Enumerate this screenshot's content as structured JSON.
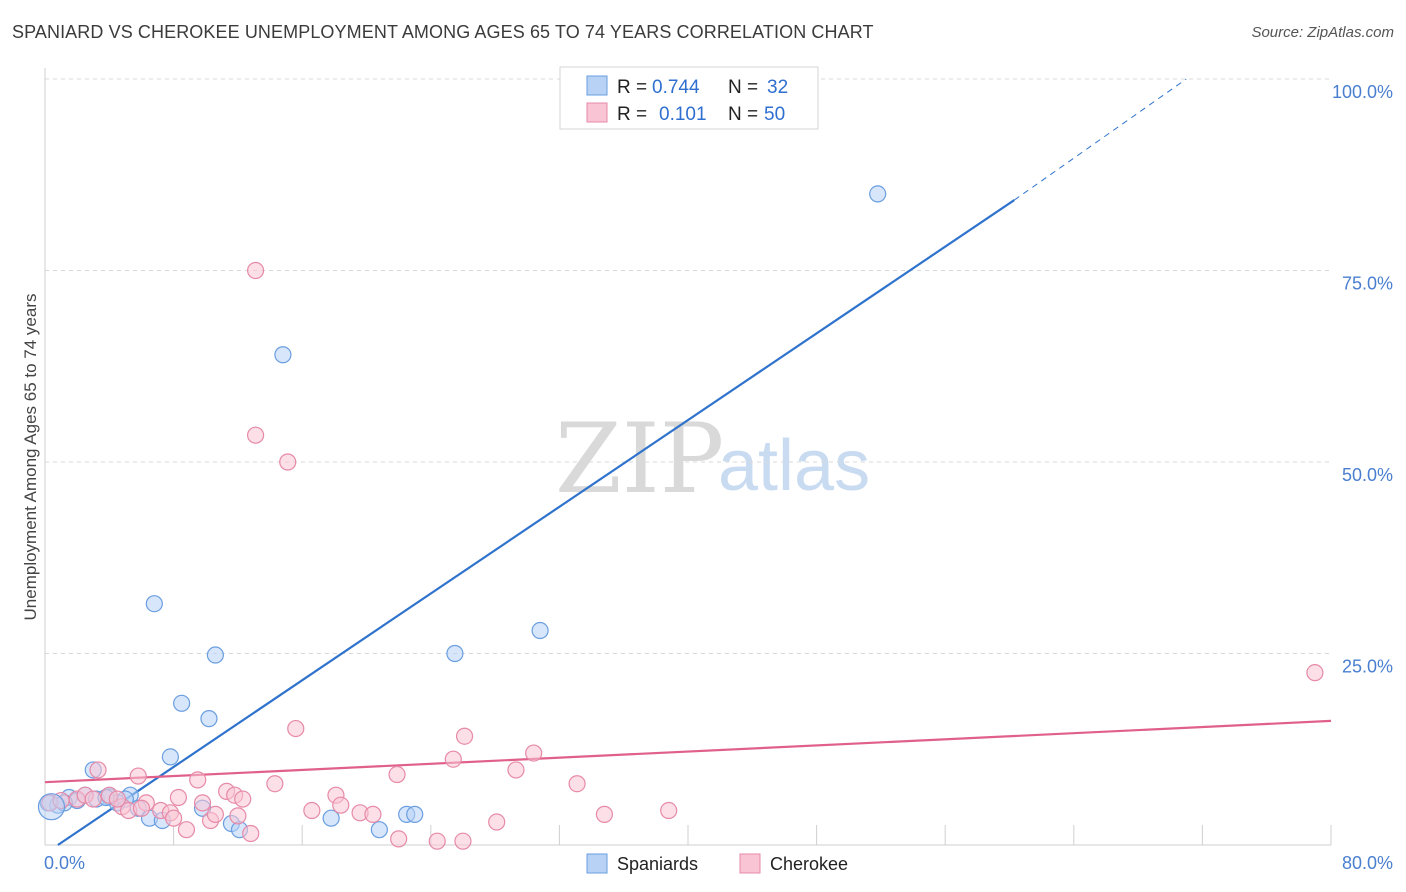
{
  "header": {
    "title": "SPANIARD VS CHEROKEE UNEMPLOYMENT AMONG AGES 65 TO 74 YEARS CORRELATION CHART",
    "source": "Source: ZipAtlas.com"
  },
  "watermark": {
    "zip": "ZIP",
    "atlas": "atlas"
  },
  "legend": {
    "r_label": "R =",
    "n_label": "N =",
    "rows": [
      {
        "name": "Spaniards",
        "r": "0.744",
        "n": "32",
        "fill": "#b7d2f5",
        "stroke": "#6a9ee0"
      },
      {
        "name": "Cherokee",
        "r": "0.101",
        "n": "50",
        "fill": "#f9c4d4",
        "stroke": "#e68aa8"
      }
    ]
  },
  "chart_data": {
    "type": "scatter",
    "title": "SPANIARD VS CHEROKEE UNEMPLOYMENT AMONG AGES 65 TO 74 YEARS CORRELATION CHART",
    "xlabel": "",
    "ylabel": "Unemployment Among Ages 65 to 74 years",
    "xlim": [
      0,
      80
    ],
    "ylim": [
      0,
      100
    ],
    "x_tick_labels": {
      "min": "0.0%",
      "max": "80.0%"
    },
    "y_ticks": [
      {
        "value": 25,
        "label": "25.0%"
      },
      {
        "value": 50,
        "label": "50.0%"
      },
      {
        "value": 75,
        "label": "75.0%"
      },
      {
        "value": 100,
        "label": "100.0%"
      }
    ],
    "series": [
      {
        "name": "Spaniards",
        "color": "#6a9ee0",
        "fill": "#b7d2f5",
        "trend": {
          "x0": 0.8,
          "y0": 0,
          "x1": 60.3,
          "y1": 84.2,
          "dash_x_end": 71,
          "dash_y_end": 100,
          "color": "#2f73cc"
        },
        "points": [
          [
            0.2,
            5.5
          ],
          [
            0.8,
            5.2
          ],
          [
            1.5,
            6.2
          ],
          [
            2.5,
            6.5
          ],
          [
            3.0,
            9.8
          ],
          [
            3.2,
            6.0
          ],
          [
            4.0,
            6.3
          ],
          [
            4.5,
            5.5
          ],
          [
            5.3,
            6.5
          ],
          [
            5.8,
            4.8
          ],
          [
            6.5,
            3.5
          ],
          [
            6.8,
            31.5
          ],
          [
            7.3,
            3.2
          ],
          [
            7.8,
            11.5
          ],
          [
            8.5,
            18.5
          ],
          [
            9.8,
            4.8
          ],
          [
            10.2,
            16.5
          ],
          [
            10.6,
            24.8
          ],
          [
            11.6,
            2.8
          ],
          [
            12.1,
            2.0
          ],
          [
            14.8,
            64.0
          ],
          [
            17.8,
            3.5
          ],
          [
            20.8,
            2.0
          ],
          [
            22.5,
            4.0
          ],
          [
            23.0,
            4.0
          ],
          [
            25.5,
            25.0
          ],
          [
            30.8,
            28.0
          ],
          [
            51.8,
            85.0
          ],
          [
            5.0,
            6.0
          ],
          [
            2.0,
            5.8
          ],
          [
            3.8,
            6.2
          ],
          [
            1.2,
            5.5
          ]
        ]
      },
      {
        "name": "Cherokee",
        "color": "#e68aa8",
        "fill": "#f9c4d4",
        "trend": {
          "x0": 0,
          "y0": 8.2,
          "x1": 80,
          "y1": 16.2,
          "color": "#e0608a"
        },
        "points": [
          [
            0.3,
            5.5
          ],
          [
            1.0,
            5.8
          ],
          [
            2.0,
            6.0
          ],
          [
            2.5,
            6.5
          ],
          [
            3.3,
            9.8
          ],
          [
            4.0,
            6.5
          ],
          [
            4.8,
            5.0
          ],
          [
            5.2,
            4.5
          ],
          [
            5.8,
            9.0
          ],
          [
            6.3,
            5.5
          ],
          [
            7.2,
            4.5
          ],
          [
            7.8,
            4.2
          ],
          [
            8.3,
            6.2
          ],
          [
            8.8,
            2.0
          ],
          [
            9.5,
            8.5
          ],
          [
            9.8,
            5.5
          ],
          [
            10.3,
            3.2
          ],
          [
            10.6,
            4.0
          ],
          [
            11.3,
            7.0
          ],
          [
            11.8,
            6.5
          ],
          [
            12.3,
            6.0
          ],
          [
            12.8,
            1.5
          ],
          [
            13.1,
            75.0
          ],
          [
            13.1,
            53.5
          ],
          [
            14.3,
            8.0
          ],
          [
            15.1,
            50.0
          ],
          [
            15.6,
            15.2
          ],
          [
            16.6,
            4.5
          ],
          [
            18.1,
            6.5
          ],
          [
            18.4,
            5.2
          ],
          [
            19.6,
            4.2
          ],
          [
            20.4,
            4.0
          ],
          [
            21.9,
            9.2
          ],
          [
            24.4,
            0.5
          ],
          [
            25.4,
            11.2
          ],
          [
            26.1,
            14.2
          ],
          [
            28.1,
            3.0
          ],
          [
            29.3,
            9.8
          ],
          [
            30.4,
            12.0
          ],
          [
            33.1,
            8.0
          ],
          [
            34.8,
            4.0
          ],
          [
            38.8,
            4.5
          ],
          [
            79.0,
            22.5
          ],
          [
            4.5,
            6.0
          ],
          [
            3.0,
            6.0
          ],
          [
            6.0,
            4.8
          ],
          [
            8.0,
            3.5
          ],
          [
            12.0,
            3.8
          ],
          [
            22.0,
            0.8
          ],
          [
            26.0,
            0.5
          ]
        ]
      }
    ]
  }
}
